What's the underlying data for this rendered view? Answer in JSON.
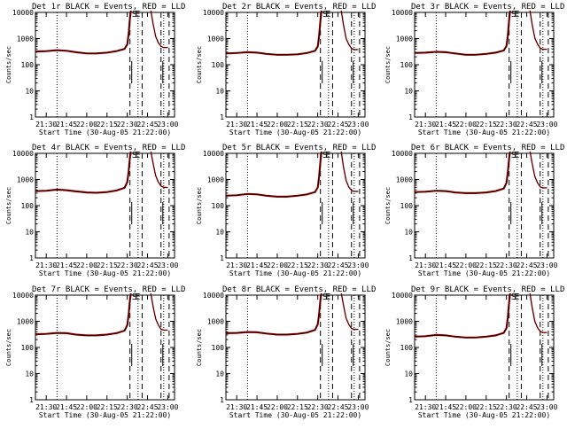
{
  "figure": {
    "colors": {
      "events": "#000000",
      "lld": "#cc0000",
      "axes": "#000000",
      "background": "#ffffff"
    },
    "marker_label": "S E"
  },
  "chart_data": [
    {
      "type": "line",
      "title": "Det 1r  BLACK = Events, RED = LLD",
      "xlabel": "Start Time (30-Aug-05 21:22:00)",
      "ylabel": "Counts/sec",
      "x_ticks": [
        "21:30",
        "21:45",
        "22:00",
        "22:15",
        "22:30",
        "22:45",
        "23:00"
      ],
      "y_ticks": [
        "1",
        "10",
        "100",
        "1000",
        "10000"
      ],
      "yscale": "log",
      "ylim": [
        1,
        10000
      ],
      "xlim": [
        "21:22",
        "23:05"
      ],
      "vlines_dotted": [
        "21:38",
        "22:38",
        "22:57"
      ],
      "vlines_dashed": [
        "22:32",
        "22:41",
        "22:55",
        "23:01"
      ],
      "series": [
        {
          "name": "Events",
          "x": [
            "21:22",
            "21:30",
            "21:38",
            "21:45",
            "21:52",
            "22:00",
            "22:07",
            "22:15",
            "22:22",
            "22:28",
            "22:30",
            "22:31",
            "22:32",
            "22:33"
          ],
          "values": [
            320,
            330,
            360,
            340,
            300,
            270,
            270,
            290,
            330,
            400,
            600,
            1500,
            6000,
            20000
          ]
        },
        {
          "name": "LLD",
          "x": [
            "22:47",
            "22:49",
            "22:51",
            "22:53",
            "22:55",
            "22:57",
            "23:00"
          ],
          "values": [
            20000,
            4000,
            1200,
            700,
            500,
            450,
            450
          ]
        }
      ]
    },
    {
      "type": "line",
      "title": "Det 2r  BLACK = Events, RED = LLD",
      "xlabel": "Start Time (30-Aug-05 21:22:00)",
      "ylabel": "Counts/sec",
      "x_ticks": [
        "21:30",
        "21:45",
        "22:00",
        "22:15",
        "22:30",
        "22:45",
        "23:00"
      ],
      "y_ticks": [
        "1",
        "10",
        "100",
        "1000",
        "10000"
      ],
      "yscale": "log",
      "ylim": [
        1,
        10000
      ],
      "xlim": [
        "21:22",
        "23:05"
      ],
      "vlines_dotted": [
        "21:38",
        "22:38",
        "22:57"
      ],
      "vlines_dashed": [
        "22:32",
        "22:41",
        "22:55",
        "23:01"
      ],
      "series": [
        {
          "name": "Events",
          "x": [
            "21:22",
            "21:30",
            "21:38",
            "21:45",
            "21:52",
            "22:00",
            "22:07",
            "22:15",
            "22:22",
            "22:28",
            "22:30",
            "22:31",
            "22:32",
            "22:33"
          ],
          "values": [
            270,
            280,
            300,
            290,
            260,
            240,
            240,
            250,
            280,
            340,
            500,
            1300,
            5000,
            20000
          ]
        },
        {
          "name": "LLD",
          "x": [
            "22:47",
            "22:49",
            "22:51",
            "22:53",
            "22:55",
            "22:57",
            "23:00"
          ],
          "values": [
            20000,
            3500,
            1000,
            600,
            420,
            380,
            380
          ]
        }
      ]
    },
    {
      "type": "line",
      "title": "Det 3r  BLACK = Events, RED = LLD",
      "xlabel": "Start Time (30-Aug-05 21:22:00)",
      "ylabel": "Counts/sec",
      "x_ticks": [
        "21:30",
        "21:45",
        "22:00",
        "22:15",
        "22:30",
        "22:45",
        "23:00"
      ],
      "y_ticks": [
        "1",
        "10",
        "100",
        "1000",
        "10000"
      ],
      "yscale": "log",
      "ylim": [
        1,
        10000
      ],
      "xlim": [
        "21:22",
        "23:05"
      ],
      "vlines_dotted": [
        "21:38",
        "22:38",
        "22:57"
      ],
      "vlines_dashed": [
        "22:32",
        "22:41",
        "22:55",
        "23:01"
      ],
      "series": [
        {
          "name": "Events",
          "x": [
            "21:22",
            "21:30",
            "21:38",
            "21:45",
            "21:52",
            "22:00",
            "22:07",
            "22:15",
            "22:22",
            "22:28",
            "22:30",
            "22:31",
            "22:32",
            "22:33"
          ],
          "values": [
            280,
            290,
            310,
            300,
            270,
            240,
            240,
            260,
            290,
            350,
            520,
            1300,
            5200,
            20000
          ]
        },
        {
          "name": "LLD",
          "x": [
            "22:47",
            "22:49",
            "22:51",
            "22:53",
            "22:55",
            "22:57",
            "23:00"
          ],
          "values": [
            20000,
            3600,
            1050,
            620,
            430,
            390,
            390
          ]
        }
      ]
    },
    {
      "type": "line",
      "title": "Det 4r  BLACK = Events, RED = LLD",
      "xlabel": "Start Time (30-Aug-05 21:22:00)",
      "ylabel": "Counts/sec",
      "x_ticks": [
        "21:30",
        "21:45",
        "22:00",
        "22:15",
        "22:30",
        "22:45",
        "23:00"
      ],
      "y_ticks": [
        "1",
        "10",
        "100",
        "1000",
        "10000"
      ],
      "yscale": "log",
      "ylim": [
        1,
        10000
      ],
      "xlim": [
        "21:22",
        "23:05"
      ],
      "vlines_dotted": [
        "21:38",
        "22:38",
        "22:57"
      ],
      "vlines_dashed": [
        "22:32",
        "22:41",
        "22:55",
        "23:01"
      ],
      "series": [
        {
          "name": "Events",
          "x": [
            "21:22",
            "21:30",
            "21:38",
            "21:45",
            "21:52",
            "22:00",
            "22:07",
            "22:15",
            "22:22",
            "22:28",
            "22:30",
            "22:31",
            "22:32",
            "22:33"
          ],
          "values": [
            360,
            370,
            410,
            390,
            350,
            320,
            310,
            330,
            380,
            480,
            800,
            2000,
            7000,
            20000
          ]
        },
        {
          "name": "LLD",
          "x": [
            "22:47",
            "22:49",
            "22:51",
            "22:53",
            "22:55",
            "22:57",
            "23:00"
          ],
          "values": [
            20000,
            4500,
            1400,
            800,
            560,
            500,
            500
          ]
        }
      ]
    },
    {
      "type": "line",
      "title": "Det 5r  BLACK = Events, RED = LLD",
      "xlabel": "Start Time (30-Aug-05 21:22:00)",
      "ylabel": "Counts/sec",
      "x_ticks": [
        "21:30",
        "21:45",
        "22:00",
        "22:15",
        "22:30",
        "22:45",
        "23:00"
      ],
      "y_ticks": [
        "1",
        "10",
        "100",
        "1000",
        "10000"
      ],
      "yscale": "log",
      "ylim": [
        1,
        10000
      ],
      "xlim": [
        "21:22",
        "23:05"
      ],
      "vlines_dotted": [
        "21:38",
        "22:38",
        "22:57"
      ],
      "vlines_dashed": [
        "22:32",
        "22:41",
        "22:55",
        "23:01"
      ],
      "series": [
        {
          "name": "Events",
          "x": [
            "21:22",
            "21:30",
            "21:38",
            "21:45",
            "21:52",
            "22:00",
            "22:07",
            "22:15",
            "22:22",
            "22:28",
            "22:30",
            "22:31",
            "22:32",
            "22:33"
          ],
          "values": [
            240,
            250,
            280,
            270,
            240,
            220,
            220,
            240,
            270,
            330,
            500,
            1300,
            5000,
            20000
          ]
        },
        {
          "name": "LLD",
          "x": [
            "22:47",
            "22:49",
            "22:51",
            "22:53",
            "22:55",
            "22:57",
            "23:00"
          ],
          "values": [
            20000,
            3200,
            900,
            520,
            380,
            350,
            350
          ]
        }
      ]
    },
    {
      "type": "line",
      "title": "Det 6r  BLACK = Events, RED = LLD",
      "xlabel": "Start Time (30-Aug-05 21:22:00)",
      "ylabel": "Counts/sec",
      "x_ticks": [
        "21:30",
        "21:45",
        "22:00",
        "22:15",
        "22:30",
        "22:45",
        "23:00"
      ],
      "y_ticks": [
        "1",
        "10",
        "100",
        "1000",
        "10000"
      ],
      "yscale": "log",
      "ylim": [
        1,
        10000
      ],
      "xlim": [
        "21:22",
        "23:05"
      ],
      "vlines_dotted": [
        "21:38",
        "22:38",
        "22:57"
      ],
      "vlines_dashed": [
        "22:32",
        "22:41",
        "22:55",
        "23:01"
      ],
      "series": [
        {
          "name": "Events",
          "x": [
            "21:22",
            "21:30",
            "21:38",
            "21:45",
            "21:52",
            "22:00",
            "22:07",
            "22:15",
            "22:22",
            "22:28",
            "22:30",
            "22:31",
            "22:32",
            "22:33"
          ],
          "values": [
            330,
            340,
            370,
            360,
            320,
            300,
            300,
            320,
            360,
            450,
            750,
            1900,
            6500,
            20000
          ]
        },
        {
          "name": "LLD",
          "x": [
            "22:47",
            "22:49",
            "22:51",
            "22:53",
            "22:55",
            "22:57",
            "23:00"
          ],
          "values": [
            20000,
            4200,
            1300,
            750,
            520,
            480,
            480
          ]
        }
      ]
    },
    {
      "type": "line",
      "title": "Det 7r  BLACK = Events, RED = LLD",
      "xlabel": "Start Time (30-Aug-05 21:22:00)",
      "ylabel": "Counts/sec",
      "x_ticks": [
        "21:30",
        "21:45",
        "22:00",
        "22:15",
        "22:30",
        "22:45",
        "23:00"
      ],
      "y_ticks": [
        "1",
        "10",
        "100",
        "1000",
        "10000"
      ],
      "yscale": "log",
      "ylim": [
        1,
        10000
      ],
      "xlim": [
        "21:22",
        "23:05"
      ],
      "vlines_dotted": [
        "21:38",
        "22:38",
        "22:57"
      ],
      "vlines_dashed": [
        "22:32",
        "22:41",
        "22:55",
        "23:01"
      ],
      "series": [
        {
          "name": "Events",
          "x": [
            "21:22",
            "21:30",
            "21:38",
            "21:45",
            "21:52",
            "22:00",
            "22:07",
            "22:15",
            "22:22",
            "22:28",
            "22:30",
            "22:31",
            "22:32",
            "22:33"
          ],
          "values": [
            320,
            330,
            360,
            350,
            310,
            290,
            290,
            310,
            350,
            440,
            720,
            1800,
            6500,
            20000
          ]
        },
        {
          "name": "LLD",
          "x": [
            "22:47",
            "22:49",
            "22:51",
            "22:53",
            "22:55",
            "22:57",
            "23:00"
          ],
          "values": [
            20000,
            4000,
            1250,
            720,
            500,
            460,
            460
          ]
        }
      ]
    },
    {
      "type": "line",
      "title": "Det 8r  BLACK = Events, RED = LLD",
      "xlabel": "Start Time (30-Aug-05 21:22:00)",
      "ylabel": "Counts/sec",
      "x_ticks": [
        "21:30",
        "21:45",
        "22:00",
        "22:15",
        "22:30",
        "22:45",
        "23:00"
      ],
      "y_ticks": [
        "1",
        "10",
        "100",
        "1000",
        "10000"
      ],
      "yscale": "log",
      "ylim": [
        1,
        10000
      ],
      "xlim": [
        "21:22",
        "23:05"
      ],
      "vlines_dotted": [
        "21:38",
        "22:38",
        "22:57"
      ],
      "vlines_dashed": [
        "22:32",
        "22:41",
        "22:55",
        "23:01"
      ],
      "series": [
        {
          "name": "Events",
          "x": [
            "21:22",
            "21:30",
            "21:38",
            "21:45",
            "21:52",
            "22:00",
            "22:07",
            "22:15",
            "22:22",
            "22:28",
            "22:30",
            "22:31",
            "22:32",
            "22:33"
          ],
          "values": [
            350,
            360,
            390,
            380,
            340,
            310,
            310,
            330,
            370,
            470,
            780,
            1900,
            6800,
            20000
          ]
        },
        {
          "name": "LLD",
          "x": [
            "22:47",
            "22:49",
            "22:51",
            "22:53",
            "22:55",
            "22:57",
            "23:00"
          ],
          "values": [
            20000,
            4300,
            1300,
            760,
            530,
            490,
            490
          ]
        }
      ]
    },
    {
      "type": "line",
      "title": "Det 9r  BLACK = Events, RED = LLD",
      "xlabel": "Start Time (30-Aug-05 21:22:00)",
      "ylabel": "Counts/sec",
      "x_ticks": [
        "21:30",
        "21:45",
        "22:00",
        "22:15",
        "22:30",
        "22:45",
        "23:00"
      ],
      "y_ticks": [
        "1",
        "10",
        "100",
        "1000",
        "10000"
      ],
      "yscale": "log",
      "ylim": [
        1,
        10000
      ],
      "xlim": [
        "21:22",
        "23:05"
      ],
      "vlines_dotted": [
        "21:38",
        "22:38",
        "22:57"
      ],
      "vlines_dashed": [
        "22:32",
        "22:41",
        "22:55",
        "23:01"
      ],
      "series": [
        {
          "name": "Events",
          "x": [
            "21:22",
            "21:30",
            "21:38",
            "21:45",
            "21:52",
            "22:00",
            "22:07",
            "22:15",
            "22:22",
            "22:28",
            "22:30",
            "22:31",
            "22:32",
            "22:33"
          ],
          "values": [
            260,
            270,
            300,
            290,
            260,
            240,
            240,
            260,
            290,
            360,
            550,
            1400,
            5500,
            20000
          ]
        },
        {
          "name": "LLD",
          "x": [
            "22:47",
            "22:49",
            "22:51",
            "22:53",
            "22:55",
            "22:57",
            "23:00"
          ],
          "values": [
            20000,
            3500,
            1000,
            580,
            410,
            370,
            370
          ]
        }
      ]
    }
  ]
}
